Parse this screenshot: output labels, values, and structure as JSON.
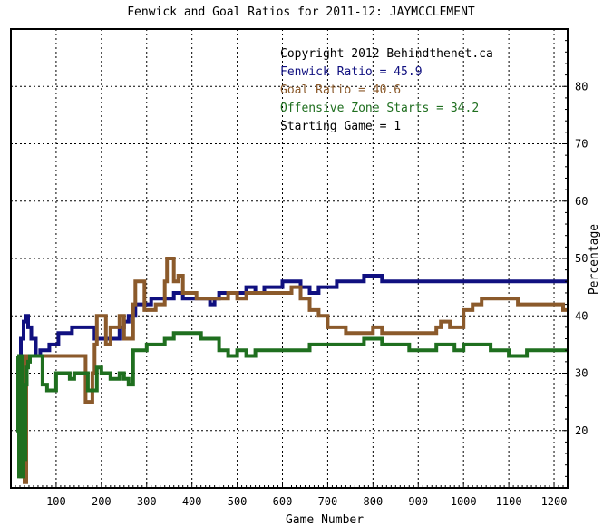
{
  "chart_data": {
    "type": "line",
    "title": "Fenwick and Goal Ratios for 2011-12: JAYMCCLEMENT",
    "xlabel": "Game Number",
    "ylabel": "Percentage",
    "xlim": [
      0,
      1230
    ],
    "ylim": [
      10,
      90
    ],
    "x_ticks": [
      100,
      200,
      300,
      400,
      500,
      600,
      700,
      800,
      900,
      1000,
      1100,
      1200
    ],
    "y_ticks": [
      20,
      30,
      40,
      50,
      60,
      70,
      80
    ],
    "grid": true,
    "legend_position": "top-right",
    "annotations": [
      {
        "text": "Copyright 2012 Behindthenet.ca",
        "color": "#000000"
      },
      {
        "text": "Fenwick Ratio = 45.9",
        "color": "#101080"
      },
      {
        "text": "Goal Ratio = 40.6",
        "color": "#8B5A2B"
      },
      {
        "text": "Offensive Zone Starts = 34.2",
        "color": "#1F6F1F"
      },
      {
        "text": "Starting Game = 1",
        "color": "#000000"
      }
    ],
    "series": [
      {
        "color": "#101080",
        "points": [
          [
            14,
            32
          ],
          [
            18,
            28
          ],
          [
            22,
            36
          ],
          [
            28,
            39
          ],
          [
            33,
            40
          ],
          [
            38,
            38
          ],
          [
            45,
            36
          ],
          [
            55,
            33
          ],
          [
            65,
            34
          ],
          [
            75,
            34
          ],
          [
            85,
            35
          ],
          [
            95,
            35
          ],
          [
            105,
            37
          ],
          [
            115,
            37
          ],
          [
            125,
            37
          ],
          [
            135,
            38
          ],
          [
            150,
            38
          ],
          [
            170,
            38
          ],
          [
            185,
            36
          ],
          [
            200,
            36
          ],
          [
            230,
            36
          ],
          [
            240,
            38
          ],
          [
            250,
            39
          ],
          [
            260,
            40
          ],
          [
            270,
            40
          ],
          [
            275,
            42
          ],
          [
            285,
            42
          ],
          [
            300,
            42
          ],
          [
            310,
            43
          ],
          [
            330,
            43
          ],
          [
            340,
            43
          ],
          [
            360,
            44
          ],
          [
            380,
            43
          ],
          [
            400,
            43
          ],
          [
            420,
            43
          ],
          [
            440,
            42
          ],
          [
            450,
            43
          ],
          [
            460,
            44
          ],
          [
            480,
            44
          ],
          [
            500,
            44
          ],
          [
            520,
            45
          ],
          [
            540,
            44
          ],
          [
            560,
            45
          ],
          [
            580,
            45
          ],
          [
            600,
            46
          ],
          [
            620,
            46
          ],
          [
            640,
            45
          ],
          [
            660,
            44
          ],
          [
            680,
            45
          ],
          [
            700,
            45
          ],
          [
            720,
            46
          ],
          [
            740,
            46
          ],
          [
            760,
            46
          ],
          [
            780,
            47
          ],
          [
            800,
            47
          ],
          [
            820,
            46
          ],
          [
            840,
            46
          ],
          [
            860,
            46
          ],
          [
            880,
            46
          ],
          [
            900,
            46
          ],
          [
            920,
            46
          ],
          [
            940,
            46
          ],
          [
            960,
            46
          ],
          [
            980,
            46
          ],
          [
            1000,
            46
          ],
          [
            1020,
            46
          ],
          [
            1040,
            46
          ],
          [
            1060,
            46
          ],
          [
            1080,
            46
          ],
          [
            1100,
            46
          ],
          [
            1120,
            46
          ],
          [
            1140,
            46
          ],
          [
            1160,
            46
          ],
          [
            1180,
            46
          ],
          [
            1200,
            46
          ],
          [
            1220,
            46
          ],
          [
            1230,
            46
          ]
        ]
      },
      {
        "color": "#8B5A2B",
        "points": [
          [
            14,
            33
          ],
          [
            18,
            20
          ],
          [
            22,
            12
          ],
          [
            26,
            30
          ],
          [
            30,
            11
          ],
          [
            34,
            33
          ],
          [
            40,
            33
          ],
          [
            60,
            33
          ],
          [
            80,
            33
          ],
          [
            100,
            33
          ],
          [
            120,
            33
          ],
          [
            140,
            33
          ],
          [
            150,
            33
          ],
          [
            160,
            33
          ],
          [
            165,
            25
          ],
          [
            175,
            25
          ],
          [
            180,
            30
          ],
          [
            185,
            35
          ],
          [
            190,
            40
          ],
          [
            205,
            40
          ],
          [
            210,
            35
          ],
          [
            220,
            38
          ],
          [
            230,
            38
          ],
          [
            240,
            40
          ],
          [
            250,
            36
          ],
          [
            262,
            36
          ],
          [
            270,
            42
          ],
          [
            275,
            46
          ],
          [
            285,
            46
          ],
          [
            295,
            41
          ],
          [
            300,
            41
          ],
          [
            320,
            42
          ],
          [
            340,
            46
          ],
          [
            345,
            50
          ],
          [
            355,
            50
          ],
          [
            360,
            46
          ],
          [
            370,
            47
          ],
          [
            380,
            44
          ],
          [
            390,
            44
          ],
          [
            400,
            44
          ],
          [
            410,
            43
          ],
          [
            420,
            43
          ],
          [
            440,
            43
          ],
          [
            460,
            43
          ],
          [
            480,
            44
          ],
          [
            500,
            43
          ],
          [
            520,
            44
          ],
          [
            540,
            44
          ],
          [
            560,
            44
          ],
          [
            580,
            44
          ],
          [
            600,
            44
          ],
          [
            620,
            45
          ],
          [
            640,
            43
          ],
          [
            660,
            41
          ],
          [
            680,
            40
          ],
          [
            700,
            38
          ],
          [
            720,
            38
          ],
          [
            740,
            37
          ],
          [
            760,
            37
          ],
          [
            780,
            37
          ],
          [
            800,
            38
          ],
          [
            820,
            37
          ],
          [
            840,
            37
          ],
          [
            860,
            37
          ],
          [
            880,
            37
          ],
          [
            900,
            37
          ],
          [
            920,
            37
          ],
          [
            940,
            38
          ],
          [
            950,
            39
          ],
          [
            970,
            38
          ],
          [
            990,
            38
          ],
          [
            1000,
            41
          ],
          [
            1020,
            42
          ],
          [
            1040,
            43
          ],
          [
            1060,
            43
          ],
          [
            1080,
            43
          ],
          [
            1100,
            43
          ],
          [
            1120,
            42
          ],
          [
            1140,
            42
          ],
          [
            1160,
            42
          ],
          [
            1180,
            42
          ],
          [
            1200,
            42
          ],
          [
            1220,
            41
          ],
          [
            1230,
            41
          ]
        ]
      },
      {
        "color": "#1F6F1F",
        "points": [
          [
            14,
            33
          ],
          [
            16,
            20
          ],
          [
            18,
            12
          ],
          [
            20,
            28
          ],
          [
            22,
            33
          ],
          [
            24,
            18
          ],
          [
            26,
            12
          ],
          [
            28,
            22
          ],
          [
            30,
            15
          ],
          [
            32,
            28
          ],
          [
            35,
            31
          ],
          [
            38,
            32
          ],
          [
            42,
            33
          ],
          [
            50,
            33
          ],
          [
            60,
            33
          ],
          [
            70,
            28
          ],
          [
            80,
            27
          ],
          [
            90,
            27
          ],
          [
            100,
            30
          ],
          [
            110,
            30
          ],
          [
            120,
            30
          ],
          [
            130,
            29
          ],
          [
            140,
            30
          ],
          [
            150,
            30
          ],
          [
            160,
            30
          ],
          [
            170,
            27
          ],
          [
            180,
            27
          ],
          [
            190,
            31
          ],
          [
            200,
            30
          ],
          [
            220,
            29
          ],
          [
            240,
            30
          ],
          [
            250,
            29
          ],
          [
            260,
            28
          ],
          [
            270,
            34
          ],
          [
            280,
            34
          ],
          [
            290,
            34
          ],
          [
            300,
            35
          ],
          [
            320,
            35
          ],
          [
            340,
            36
          ],
          [
            360,
            37
          ],
          [
            380,
            37
          ],
          [
            400,
            37
          ],
          [
            420,
            36
          ],
          [
            440,
            36
          ],
          [
            460,
            34
          ],
          [
            480,
            33
          ],
          [
            500,
            34
          ],
          [
            520,
            33
          ],
          [
            540,
            34
          ],
          [
            560,
            34
          ],
          [
            580,
            34
          ],
          [
            600,
            34
          ],
          [
            620,
            34
          ],
          [
            640,
            34
          ],
          [
            660,
            35
          ],
          [
            680,
            35
          ],
          [
            700,
            35
          ],
          [
            720,
            35
          ],
          [
            740,
            35
          ],
          [
            760,
            35
          ],
          [
            780,
            36
          ],
          [
            800,
            36
          ],
          [
            820,
            35
          ],
          [
            840,
            35
          ],
          [
            860,
            35
          ],
          [
            880,
            34
          ],
          [
            900,
            34
          ],
          [
            920,
            34
          ],
          [
            940,
            35
          ],
          [
            960,
            35
          ],
          [
            980,
            34
          ],
          [
            1000,
            35
          ],
          [
            1020,
            35
          ],
          [
            1040,
            35
          ],
          [
            1060,
            34
          ],
          [
            1080,
            34
          ],
          [
            1100,
            33
          ],
          [
            1120,
            33
          ],
          [
            1140,
            34
          ],
          [
            1160,
            34
          ],
          [
            1180,
            34
          ],
          [
            1200,
            34
          ],
          [
            1220,
            34
          ],
          [
            1230,
            34
          ]
        ]
      }
    ]
  }
}
